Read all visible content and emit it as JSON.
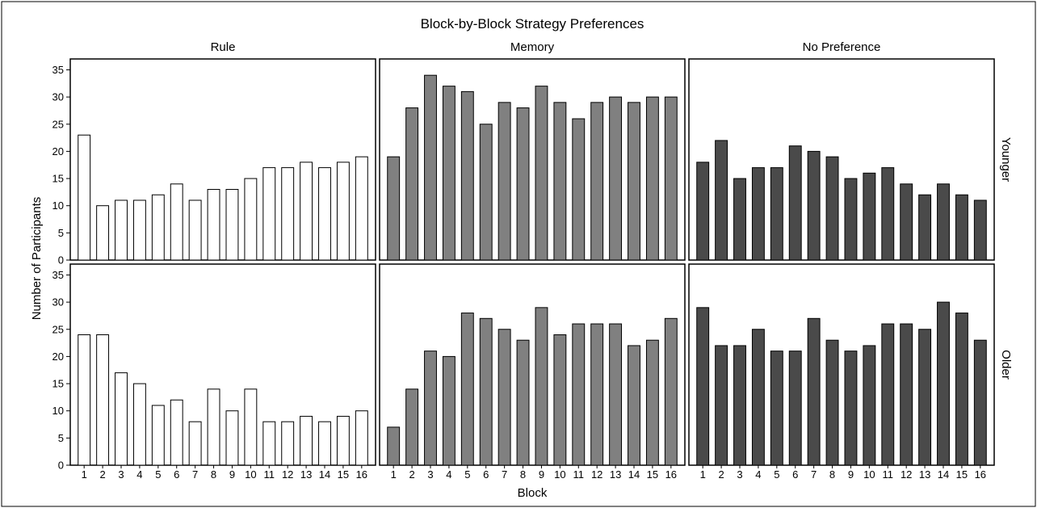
{
  "chart_data": {
    "type": "bar",
    "title": "Block-by-Block Strategy Preferences",
    "xlabel": "Block",
    "ylabel": "Number of Participants",
    "ylim": [
      0,
      37
    ],
    "yticks": [
      "0",
      "5",
      "10",
      "15",
      "20",
      "25",
      "30",
      "35"
    ],
    "categories": [
      "1",
      "2",
      "3",
      "4",
      "5",
      "6",
      "7",
      "8",
      "9",
      "10",
      "11",
      "12",
      "13",
      "14",
      "15",
      "16"
    ],
    "columns": [
      {
        "name": "Rule",
        "fill": "#ffffff"
      },
      {
        "name": "Memory",
        "fill": "#808080"
      },
      {
        "name": "No Preference",
        "fill": "#4a4a4a"
      }
    ],
    "rows": [
      "Younger",
      "Older"
    ],
    "panels": [
      {
        "row": "Younger",
        "column": "Rule",
        "values": [
          23,
          10,
          11,
          11,
          12,
          14,
          11,
          13,
          13,
          15,
          17,
          17,
          18,
          17,
          18,
          19
        ]
      },
      {
        "row": "Younger",
        "column": "Memory",
        "values": [
          19,
          28,
          34,
          32,
          31,
          25,
          29,
          28,
          32,
          29,
          26,
          29,
          30,
          29,
          30,
          30
        ]
      },
      {
        "row": "Younger",
        "column": "No Preference",
        "values": [
          18,
          22,
          15,
          17,
          17,
          21,
          20,
          19,
          15,
          16,
          17,
          14,
          12,
          14,
          12,
          11
        ]
      },
      {
        "row": "Older",
        "column": "Rule",
        "values": [
          24,
          24,
          17,
          15,
          11,
          12,
          8,
          14,
          10,
          14,
          8,
          8,
          9,
          8,
          9,
          10
        ]
      },
      {
        "row": "Older",
        "column": "Memory",
        "values": [
          7,
          14,
          21,
          20,
          28,
          27,
          25,
          23,
          29,
          24,
          26,
          26,
          26,
          22,
          23,
          27
        ]
      },
      {
        "row": "Older",
        "column": "No Preference",
        "values": [
          29,
          22,
          22,
          25,
          21,
          21,
          27,
          23,
          21,
          22,
          26,
          26,
          25,
          30,
          28,
          23
        ]
      }
    ],
    "grid": false,
    "legend": "none"
  }
}
